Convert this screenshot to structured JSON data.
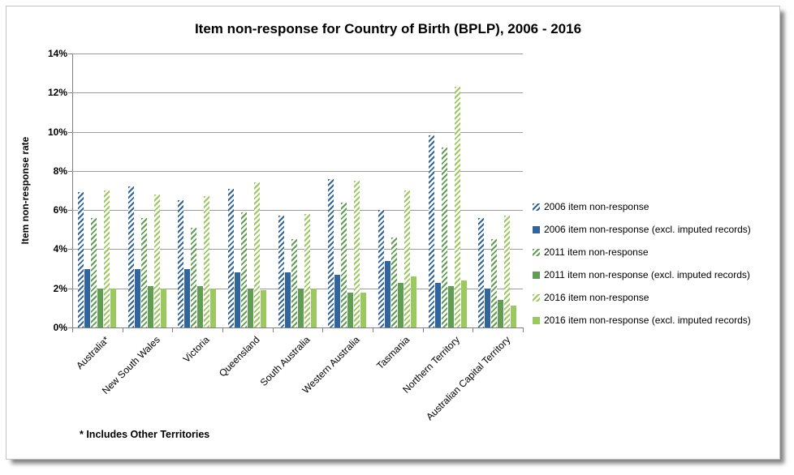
{
  "page": {
    "footnote": "* Includes Other Territories"
  },
  "chart_data": {
    "type": "bar",
    "title": "Item non-response for Country of Birth (BPLP), 2006 - 2016",
    "xlabel": "",
    "ylabel": "Item non-response rate",
    "ylim": [
      0,
      14
    ],
    "y_ticks": [
      "0%",
      "2%",
      "4%",
      "6%",
      "8%",
      "10%",
      "12%",
      "14%"
    ],
    "grid": true,
    "legend_position": "right",
    "categories": [
      "Australia*",
      "New South Wales",
      "Victoria",
      "Queensland",
      "South Australia",
      "Western Australia",
      "Tasmania",
      "Northern Territory",
      "Australian Capital Territory"
    ],
    "series": [
      {
        "name": "2006 item non-response",
        "style": "hatched",
        "color": "#31659C",
        "values": [
          6.9,
          7.2,
          6.5,
          7.1,
          5.7,
          7.6,
          6.0,
          9.8,
          5.6
        ]
      },
      {
        "name": "2006 item non-response (excl. imputed records)",
        "style": "solid",
        "color": "#31659C",
        "values": [
          3.0,
          3.0,
          3.0,
          2.8,
          2.8,
          2.7,
          3.4,
          2.3,
          2.0
        ]
      },
      {
        "name": "2011 item non-response",
        "style": "hatched",
        "color": "#619E54",
        "values": [
          5.6,
          5.6,
          5.1,
          5.9,
          4.5,
          6.4,
          4.6,
          9.2,
          4.5
        ]
      },
      {
        "name": "2011 item non-response (excl. imputed records)",
        "style": "solid",
        "color": "#619E54",
        "values": [
          2.0,
          2.1,
          2.1,
          2.0,
          2.0,
          1.8,
          2.3,
          2.1,
          1.4
        ]
      },
      {
        "name": "2016 item non-response",
        "style": "hatched",
        "color": "#9CC95F",
        "values": [
          7.0,
          6.8,
          6.7,
          7.4,
          5.8,
          7.5,
          7.0,
          12.3,
          5.7
        ]
      },
      {
        "name": "2016 item non-response (excl. imputed records)",
        "style": "solid",
        "color": "#9CC95F",
        "values": [
          2.0,
          2.0,
          2.0,
          1.9,
          2.0,
          1.8,
          2.6,
          2.4,
          1.1
        ]
      }
    ]
  }
}
